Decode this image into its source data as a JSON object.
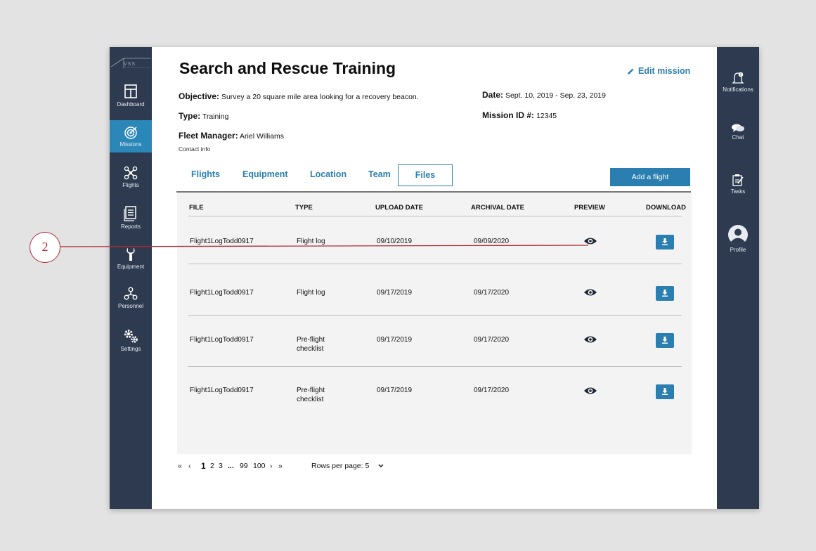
{
  "logo": "VSS",
  "left_nav": [
    {
      "label": "Dashboard",
      "icon": "dashboard-icon"
    },
    {
      "label": "Missions",
      "icon": "target-icon",
      "active": true
    },
    {
      "label": "Flights",
      "icon": "drone-icon"
    },
    {
      "label": "Reports",
      "icon": "report-icon"
    },
    {
      "label": "Equipment",
      "icon": "wrench-icon"
    },
    {
      "label": "Personnel",
      "icon": "personnel-icon"
    },
    {
      "label": "Settings",
      "icon": "gear-icon"
    }
  ],
  "right_nav": [
    {
      "label": "Notifications",
      "icon": "bell-icon"
    },
    {
      "label": "Chat",
      "icon": "chat-icon"
    },
    {
      "label": "Tasks",
      "icon": "tasks-icon"
    },
    {
      "label": "Profile",
      "icon": "avatar-icon"
    }
  ],
  "mission": {
    "title": "Search and Rescue Training",
    "edit_label": "Edit mission",
    "objective_label": "Objective:",
    "objective": "Survey a 20 square mile area looking for a recovery beacon.",
    "type_label": "Type:",
    "type": "Training",
    "fleet_manager_label": "Fleet Manager:",
    "fleet_manager": "Ariel Williams",
    "contact_info": "Contact info",
    "date_label": "Date:",
    "date": "Sept. 10, 2019 - Sep. 23, 2019",
    "mission_id_label": "Mission ID #:",
    "mission_id": "12345"
  },
  "tabs": [
    "Flights",
    "Equipment",
    "Location",
    "Team",
    "Files"
  ],
  "active_tab": "Files",
  "add_flight_label": "Add a flight",
  "table": {
    "columns": [
      "FILE",
      "TYPE",
      "UPLOAD DATE",
      "ARCHIVAL DATE",
      "PREVIEW",
      "DOWNLOAD"
    ],
    "rows": [
      {
        "file": "Flight1LogTodd0917",
        "type": "Flight log",
        "type2": "",
        "upload": "09/10/2019",
        "archival": "09/09/2020"
      },
      {
        "file": "Flight1LogTodd0917",
        "type": "Flight log",
        "type2": "",
        "upload": "09/17/2019",
        "archival": "09/17/2020"
      },
      {
        "file": "Flight1LogTodd0917",
        "type": "Pre-flight",
        "type2": "checklist",
        "upload": "09/17/2019",
        "archival": "09/17/2020"
      },
      {
        "file": "Flight1LogTodd0917",
        "type": "Pre-flight",
        "type2": "checklist",
        "upload": "09/17/2019",
        "archival": "09/17/2020"
      }
    ]
  },
  "pagination": {
    "first": "«",
    "prev": "‹",
    "pages": [
      "1",
      "2",
      "3",
      "...",
      "99",
      "100"
    ],
    "current": "1",
    "next": "›",
    "last": "»",
    "rows_per_page_label": "Rows per page: 5"
  },
  "callout": {
    "number": "2",
    "color": "#b22b35"
  },
  "colors": {
    "sidebar": "#2d3a4f",
    "accent": "#2a7fb0"
  }
}
